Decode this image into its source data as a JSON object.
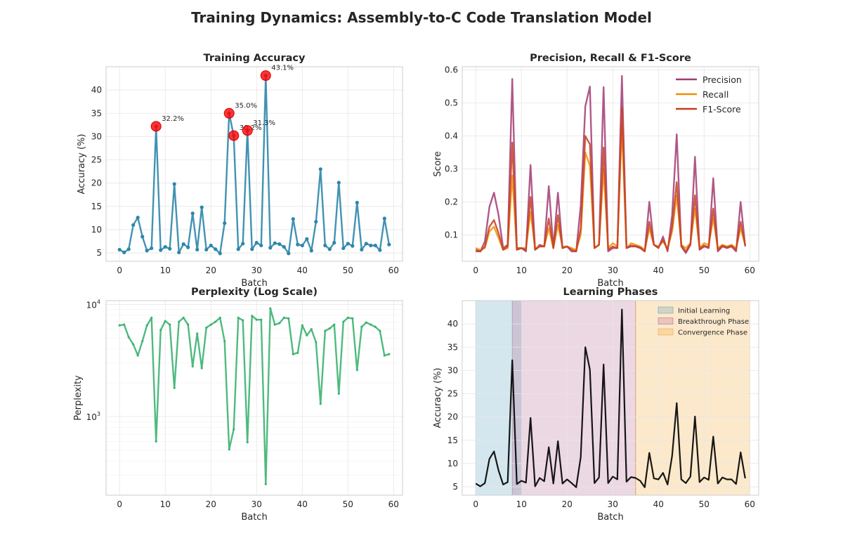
{
  "figure_title": "Training Dynamics: Assembly-to-C Code Translation Model",
  "chart_data": [
    {
      "id": "accuracy",
      "type": "line",
      "title": "Training Accuracy",
      "xlabel": "Batch",
      "ylabel": "Accuracy (%)",
      "xlim": [
        -2.95,
        61.95
      ],
      "ylim": [
        3.2,
        45.0
      ],
      "xticks": [
        0,
        10,
        20,
        30,
        40,
        50,
        60
      ],
      "yticks": [
        5,
        10,
        15,
        20,
        25,
        30,
        35,
        40
      ],
      "grid": true,
      "color": "#2e86ab",
      "x": [
        0,
        1,
        2,
        3,
        4,
        5,
        6,
        7,
        8,
        9,
        10,
        11,
        12,
        13,
        14,
        15,
        16,
        17,
        18,
        19,
        20,
        21,
        22,
        23,
        24,
        25,
        26,
        27,
        28,
        29,
        30,
        31,
        32,
        33,
        34,
        35,
        36,
        37,
        38,
        39,
        40,
        41,
        42,
        43,
        44,
        45,
        46,
        47,
        48,
        49,
        50,
        51,
        52,
        53,
        54,
        55,
        56,
        57,
        58,
        59
      ],
      "values": [
        5.7,
        5.1,
        5.8,
        11.0,
        12.6,
        8.5,
        5.5,
        6.0,
        32.2,
        5.6,
        6.3,
        5.9,
        19.8,
        5.1,
        6.9,
        6.2,
        13.5,
        5.7,
        14.8,
        5.7,
        6.6,
        5.8,
        4.9,
        11.4,
        35.0,
        30.2,
        5.8,
        7.0,
        31.3,
        5.8,
        7.2,
        6.6,
        43.1,
        6.1,
        7.1,
        6.9,
        6.3,
        4.9,
        12.3,
        6.8,
        6.6,
        8.0,
        5.5,
        11.7,
        23.0,
        6.6,
        5.8,
        7.2,
        20.1,
        6.0,
        7.0,
        6.5,
        15.8,
        5.7,
        7.0,
        6.6,
        6.6,
        5.6,
        12.4,
        6.8
      ],
      "highlights": [
        {
          "x": 8,
          "y": 32.2,
          "label": "32.2%"
        },
        {
          "x": 24,
          "y": 35.0,
          "label": "35.0%"
        },
        {
          "x": 25,
          "y": 30.2,
          "label": "30.2%"
        },
        {
          "x": 28,
          "y": 31.3,
          "label": "31.3%"
        },
        {
          "x": 32,
          "y": 43.1,
          "label": "43.1%"
        }
      ],
      "highlight_color": "#ff0000"
    },
    {
      "id": "prf",
      "type": "line",
      "title": "Precision, Recall & F1-Score",
      "xlabel": "Batch",
      "ylabel": "Score",
      "xlim": [
        -2.95,
        61.95
      ],
      "ylim": [
        0.02,
        0.61
      ],
      "xticks": [
        0,
        10,
        20,
        30,
        40,
        50,
        60
      ],
      "yticks": [
        0.1,
        0.2,
        0.3,
        0.4,
        0.5,
        0.6
      ],
      "grid": true,
      "legend": "top-right",
      "x": [
        0,
        1,
        2,
        3,
        4,
        5,
        6,
        7,
        8,
        9,
        10,
        11,
        12,
        13,
        14,
        15,
        16,
        17,
        18,
        19,
        20,
        21,
        22,
        23,
        24,
        25,
        26,
        27,
        28,
        29,
        30,
        31,
        32,
        33,
        34,
        35,
        36,
        37,
        38,
        39,
        40,
        41,
        42,
        43,
        44,
        45,
        46,
        47,
        48,
        49,
        50,
        51,
        52,
        53,
        54,
        55,
        56,
        57,
        58,
        59
      ],
      "series": [
        {
          "name": "Precision",
          "color": "#a23b72",
          "values": [
            0.05,
            0.05,
            0.08,
            0.185,
            0.228,
            0.16,
            0.06,
            0.07,
            0.573,
            0.06,
            0.06,
            0.05,
            0.312,
            0.055,
            0.07,
            0.065,
            0.248,
            0.06,
            0.228,
            0.06,
            0.065,
            0.05,
            0.05,
            0.19,
            0.49,
            0.55,
            0.06,
            0.07,
            0.548,
            0.05,
            0.06,
            0.06,
            0.582,
            0.06,
            0.065,
            0.065,
            0.06,
            0.05,
            0.2,
            0.07,
            0.06,
            0.095,
            0.05,
            0.16,
            0.405,
            0.065,
            0.045,
            0.07,
            0.337,
            0.055,
            0.065,
            0.06,
            0.272,
            0.05,
            0.065,
            0.06,
            0.065,
            0.05,
            0.2,
            0.065
          ]
        },
        {
          "name": "Recall",
          "color": "#f18f01",
          "values": [
            0.06,
            0.055,
            0.06,
            0.11,
            0.125,
            0.09,
            0.055,
            0.06,
            0.28,
            0.055,
            0.06,
            0.06,
            0.17,
            0.06,
            0.065,
            0.065,
            0.12,
            0.06,
            0.13,
            0.065,
            0.065,
            0.06,
            0.055,
            0.1,
            0.35,
            0.31,
            0.06,
            0.07,
            0.3,
            0.06,
            0.075,
            0.065,
            0.43,
            0.06,
            0.075,
            0.07,
            0.065,
            0.055,
            0.12,
            0.07,
            0.065,
            0.08,
            0.06,
            0.11,
            0.22,
            0.07,
            0.06,
            0.075,
            0.18,
            0.06,
            0.075,
            0.07,
            0.15,
            0.06,
            0.07,
            0.065,
            0.07,
            0.06,
            0.12,
            0.07
          ]
        },
        {
          "name": "F1-Score",
          "color": "#c73e1d",
          "values": [
            0.055,
            0.05,
            0.065,
            0.125,
            0.145,
            0.105,
            0.055,
            0.065,
            0.38,
            0.055,
            0.06,
            0.055,
            0.215,
            0.055,
            0.065,
            0.065,
            0.15,
            0.06,
            0.16,
            0.06,
            0.065,
            0.055,
            0.05,
            0.12,
            0.4,
            0.375,
            0.06,
            0.07,
            0.365,
            0.055,
            0.065,
            0.06,
            0.485,
            0.06,
            0.068,
            0.066,
            0.062,
            0.05,
            0.14,
            0.07,
            0.062,
            0.085,
            0.055,
            0.125,
            0.26,
            0.068,
            0.05,
            0.072,
            0.22,
            0.057,
            0.068,
            0.063,
            0.18,
            0.055,
            0.067,
            0.062,
            0.067,
            0.055,
            0.14,
            0.068
          ]
        }
      ]
    },
    {
      "id": "perplexity",
      "type": "line",
      "title": "Perplexity (Log Scale)",
      "xlabel": "Batch",
      "ylabel": "Perplexity",
      "scale": "log",
      "xlim": [
        -2.95,
        61.95
      ],
      "ylim": [
        199,
        10800
      ],
      "xticks": [
        0,
        10,
        20,
        30,
        40,
        50,
        60
      ],
      "ytick_labels": [
        {
          "value": 1000,
          "base": "10",
          "exp": "3"
        },
        {
          "value": 10000,
          "base": "10",
          "exp": "4"
        }
      ],
      "grid": true,
      "color": "#3cb371",
      "x": [
        0,
        1,
        2,
        3,
        4,
        5,
        6,
        7,
        8,
        9,
        10,
        11,
        12,
        13,
        14,
        15,
        16,
        17,
        18,
        19,
        20,
        21,
        22,
        23,
        24,
        25,
        26,
        27,
        28,
        29,
        30,
        31,
        32,
        33,
        34,
        35,
        36,
        37,
        38,
        39,
        40,
        41,
        42,
        43,
        44,
        45,
        46,
        47,
        48,
        49,
        50,
        51,
        52,
        53,
        54,
        55,
        56,
        57,
        58,
        59
      ],
      "values": [
        6500,
        6600,
        5100,
        4400,
        3500,
        4700,
        6500,
        7600,
        600,
        5900,
        7100,
        6600,
        1800,
        7000,
        7600,
        6600,
        2800,
        5500,
        2700,
        6200,
        6600,
        7000,
        7600,
        4700,
        510,
        770,
        7600,
        7200,
        590,
        7900,
        7300,
        7300,
        250,
        9200,
        6600,
        6800,
        7600,
        7500,
        3600,
        3700,
        6500,
        5300,
        6000,
        4600,
        1300,
        5800,
        6100,
        6600,
        1600,
        7000,
        7600,
        7500,
        2600,
        6300,
        6900,
        6600,
        6300,
        5800,
        3500,
        3600
      ]
    },
    {
      "id": "phases",
      "type": "line",
      "title": "Learning Phases",
      "xlabel": "Batch",
      "ylabel": "Accuracy (%)",
      "xlim": [
        -2.95,
        61.95
      ],
      "ylim": [
        3.2,
        45.0
      ],
      "xticks": [
        0,
        10,
        20,
        30,
        40,
        50,
        60
      ],
      "yticks": [
        5,
        10,
        15,
        20,
        25,
        30,
        35,
        40
      ],
      "grid": true,
      "legend": "top-right",
      "color": "#000000",
      "x": [
        0,
        1,
        2,
        3,
        4,
        5,
        6,
        7,
        8,
        9,
        10,
        11,
        12,
        13,
        14,
        15,
        16,
        17,
        18,
        19,
        20,
        21,
        22,
        23,
        24,
        25,
        26,
        27,
        28,
        29,
        30,
        31,
        32,
        33,
        34,
        35,
        36,
        37,
        38,
        39,
        40,
        41,
        42,
        43,
        44,
        45,
        46,
        47,
        48,
        49,
        50,
        51,
        52,
        53,
        54,
        55,
        56,
        57,
        58,
        59
      ],
      "values": [
        5.7,
        5.1,
        5.8,
        11.0,
        12.6,
        8.5,
        5.5,
        6.0,
        32.2,
        5.6,
        6.3,
        5.9,
        19.8,
        5.1,
        6.9,
        6.2,
        13.5,
        5.7,
        14.8,
        5.7,
        6.6,
        5.8,
        4.9,
        11.4,
        35.0,
        30.2,
        5.8,
        7.0,
        31.3,
        5.8,
        7.2,
        6.6,
        43.1,
        6.1,
        7.1,
        6.9,
        6.3,
        4.9,
        12.3,
        6.8,
        6.6,
        8.0,
        5.5,
        11.7,
        23.0,
        6.6,
        5.8,
        7.2,
        20.1,
        6.0,
        7.0,
        6.5,
        15.8,
        5.7,
        7.0,
        6.6,
        6.6,
        5.6,
        12.4,
        6.8
      ],
      "phases": [
        {
          "name": "Initial Learning",
          "start": 0,
          "end": 10,
          "color": "#2e86ab"
        },
        {
          "name": "Breakthrough Phase",
          "start": 8,
          "end": 35,
          "color": "#a23b72"
        },
        {
          "name": "Convergence Phase",
          "start": 35,
          "end": 60,
          "color": "#f18f01"
        }
      ]
    }
  ]
}
